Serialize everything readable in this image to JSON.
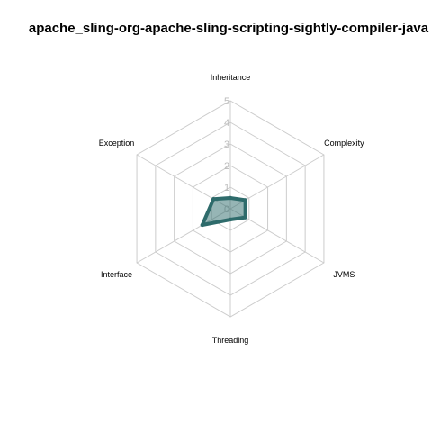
{
  "chart_data": {
    "type": "radar",
    "title": "apache_sling-org-apache-sling-scripting-sightly-compiler-java",
    "axes": [
      "Inheritance",
      "Complexity",
      "JVMS",
      "Threading",
      "Interface",
      "Exception"
    ],
    "ticks": [
      "0",
      "1",
      "2",
      "3",
      "4",
      "5"
    ],
    "range": [
      0,
      5
    ],
    "series": [
      {
        "name": "apache_sling-org-apache-sling-scripting-sightly-compiler-java",
        "values": [
          0.5,
          0.8,
          0.8,
          0.5,
          1.5,
          0.9
        ],
        "color": "#2e6b6b",
        "fill": "#2e6b6b",
        "fill_opacity": 0.5
      }
    ]
  }
}
